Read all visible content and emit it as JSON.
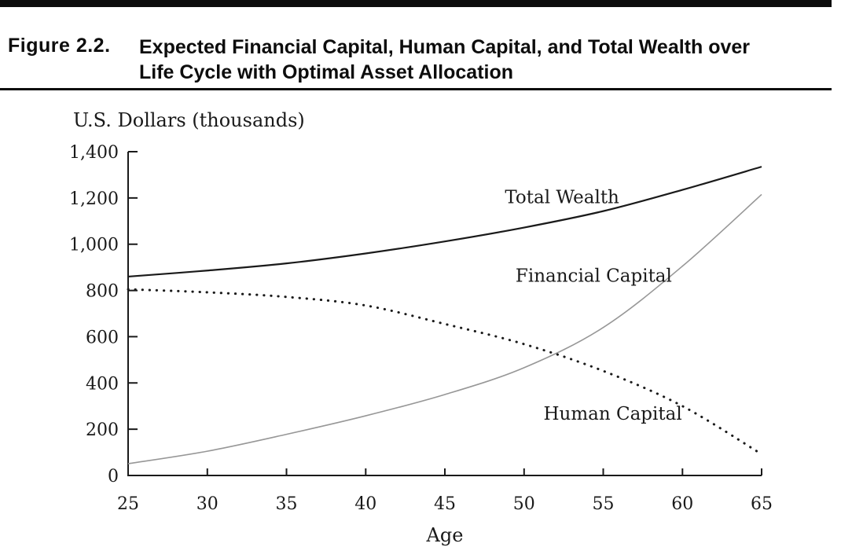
{
  "figure": {
    "label": "Figure 2.2.",
    "title_line1": "Expected Financial Capital, Human Capital, and Total Wealth over",
    "title_line2": "Life Cycle with Optimal Asset Allocation"
  },
  "chart_data": {
    "type": "line",
    "title": "Expected Financial Capital, Human Capital, and Total Wealth over Life Cycle with Optimal Asset Allocation",
    "y_axis_title": "U.S. Dollars (thousands)",
    "x_axis_title": "Age",
    "xlim": [
      25,
      65
    ],
    "ylim": [
      0,
      1400
    ],
    "grid": false,
    "legend_position": "inline-labels",
    "x_ticks": [
      {
        "value": 25,
        "label": "25"
      },
      {
        "value": 30,
        "label": "30"
      },
      {
        "value": 35,
        "label": "35"
      },
      {
        "value": 40,
        "label": "40"
      },
      {
        "value": 45,
        "label": "45"
      },
      {
        "value": 50,
        "label": "50"
      },
      {
        "value": 55,
        "label": "55"
      },
      {
        "value": 60,
        "label": "60"
      },
      {
        "value": 65,
        "label": "65"
      }
    ],
    "y_ticks": [
      {
        "value": 0,
        "label": "0"
      },
      {
        "value": 200,
        "label": "200"
      },
      {
        "value": 400,
        "label": "400"
      },
      {
        "value": 600,
        "label": "600"
      },
      {
        "value": 800,
        "label": "800"
      },
      {
        "value": 1000,
        "label": "1,000"
      },
      {
        "value": 1200,
        "label": "1,200"
      },
      {
        "value": 1400,
        "label": "1,400"
      }
    ],
    "x": [
      25,
      30,
      35,
      40,
      45,
      50,
      55,
      60,
      65
    ],
    "series": [
      {
        "name": "Total Wealth",
        "style": "solid",
        "color": "#1a1a1a",
        "stroke_width": 2.2,
        "values": [
          860,
          886,
          917,
          960,
          1012,
          1072,
          1143,
          1235,
          1335
        ],
        "label": {
          "text": "Total Wealth",
          "age": 52.4,
          "value": 1205
        }
      },
      {
        "name": "Financial Capital",
        "style": "solid",
        "color": "#979797",
        "stroke_width": 1.6,
        "values": [
          51,
          105,
          178,
          258,
          350,
          466,
          640,
          905,
          1215
        ],
        "label": {
          "text": "Financial Capital",
          "age": 54.4,
          "value": 865
        }
      },
      {
        "name": "Human Capital",
        "style": "dotted",
        "color": "#1a1a1a",
        "stroke_width": 3,
        "values": [
          805,
          792,
          772,
          735,
          655,
          568,
          452,
          300,
          92
        ],
        "label": {
          "text": "Human Capital",
          "age": 55.6,
          "value": 268
        }
      }
    ]
  },
  "colors": {
    "rule": "#0d0d0d",
    "axis": "#1a1a1a",
    "text": "#1a1a1a"
  }
}
